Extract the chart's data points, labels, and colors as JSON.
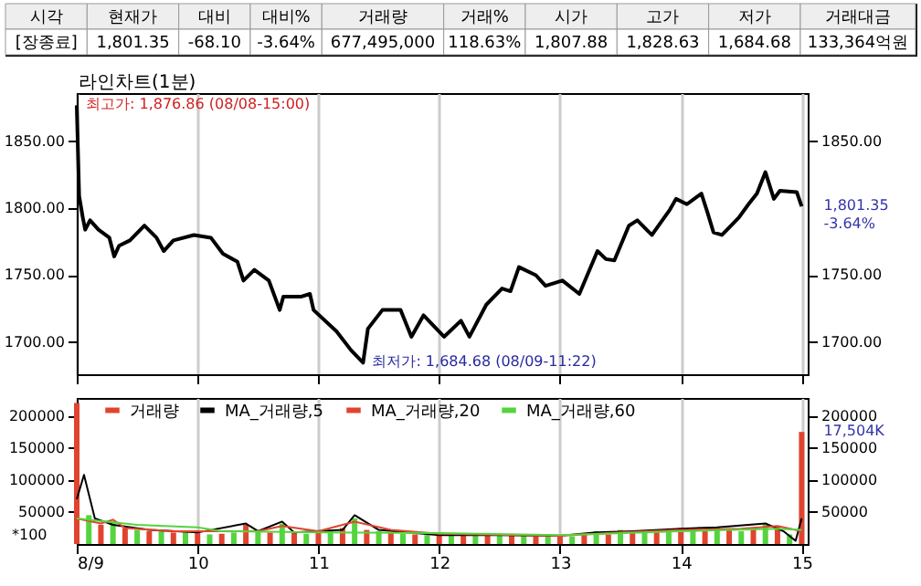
{
  "chart_data": [
    {
      "type": "other",
      "categories": [
        "시각",
        "현재가",
        "대비",
        "대비%",
        "거래량",
        "거래%",
        "시가",
        "고가",
        "저가",
        "거래대금"
      ],
      "value_labels": [
        "[장종료]",
        "1,801.35",
        "-68.10",
        "-3.64%",
        "677,495,000",
        "118.63%",
        "1,807.88",
        "1,828.63",
        "1,684.68",
        "133,364억원"
      ]
    },
    {
      "type": "line",
      "x": [
        9.0,
        9.02,
        9.05,
        9.07,
        9.11,
        9.18,
        9.27,
        9.31,
        9.35,
        9.44,
        9.56,
        9.66,
        9.72,
        9.8,
        9.97,
        10.11,
        10.21,
        10.33,
        10.38,
        10.47,
        10.59,
        10.68,
        10.71,
        10.86,
        10.93,
        10.96,
        11.15,
        11.27,
        11.37,
        11.41,
        11.53,
        11.68,
        11.77,
        11.87,
        12.04,
        12.18,
        12.25,
        12.39,
        12.52,
        12.59,
        12.66,
        12.8,
        12.88,
        13.02,
        13.16,
        13.31,
        13.38,
        13.45,
        13.57,
        13.64,
        13.76,
        13.91,
        13.96,
        14.05,
        14.17,
        14.22,
        14.27,
        14.34,
        14.48,
        14.56,
        14.63,
        14.7,
        14.77,
        14.82,
        14.96,
        15.0
      ],
      "series": [
        {
          "color": "#000000",
          "values": [
            1876.86,
            1809,
            1793,
            1784,
            1791,
            1784,
            1778,
            1764,
            1772,
            1776,
            1787,
            1778,
            1768,
            1776,
            1780,
            1778,
            1766,
            1760,
            1746,
            1754,
            1746,
            1724,
            1734,
            1734,
            1736,
            1724,
            1708,
            1694,
            1684.68,
            1710,
            1724,
            1724,
            1704,
            1720,
            1704,
            1716,
            1704,
            1728,
            1740,
            1738,
            1756,
            1750,
            1742,
            1746,
            1736,
            1768,
            1762,
            1761,
            1787,
            1791,
            1780,
            1799,
            1807,
            1803,
            1811,
            1797,
            1782,
            1780,
            1793,
            1803,
            1811,
            1827,
            1807,
            1813,
            1812,
            1801.35
          ]
        }
      ],
      "xlim": [
        9,
        15.05
      ],
      "xticks": [
        9,
        10,
        11,
        12,
        13,
        14,
        15
      ],
      "ylim": [
        1676,
        1886
      ],
      "yticks": [
        {
          "value": 1700,
          "label": "1700.00"
        },
        {
          "value": 1750,
          "label": "1750.00"
        },
        {
          "value": 1800,
          "label": "1800.00"
        },
        {
          "value": 1850,
          "label": "1850.00"
        }
      ],
      "y2lim": [
        1676,
        1886
      ],
      "y2ticks": [
        {
          "value": 1700,
          "label": "1700.00"
        },
        {
          "value": 1750,
          "label": "1750.00"
        },
        {
          "value": 1850,
          "label": "1850.00"
        }
      ],
      "grid": "x",
      "tick_labels": "y",
      "annotations": [
        "라인차트(1분)",
        {
          "text": "최고가: 1,876.86 (08/08-15:00)",
          "x": 9,
          "y": 1876.86
        },
        {
          "text": "최저가: 1,684.68 (08/09-11:22)",
          "x": 11.37,
          "y": 1684.68
        },
        {
          "text": "1,801.35",
          "x": 15,
          "y": 1801.35
        },
        {
          "text": "-3.64%",
          "x": 15,
          "y": 1801.35
        }
      ]
    },
    {
      "type": "bar",
      "series": [
        {
          "name": "거래량",
          "type": "bar",
          "color": "#e0442f",
          "x": [
            9.0,
            9.1,
            9.2,
            9.3,
            9.4,
            9.5,
            9.6,
            9.7,
            9.8,
            9.9,
            10.0,
            10.1,
            10.2,
            10.3,
            10.4,
            10.5,
            10.6,
            10.7,
            10.8,
            10.9,
            11.0,
            11.1,
            11.2,
            11.3,
            11.4,
            11.5,
            11.6,
            11.7,
            11.8,
            11.9,
            12.0,
            12.1,
            12.2,
            12.3,
            12.4,
            12.5,
            12.6,
            12.7,
            12.8,
            12.9,
            13.0,
            13.1,
            13.2,
            13.3,
            13.4,
            13.5,
            13.6,
            13.7,
            13.8,
            13.9,
            14.0,
            14.1,
            14.2,
            14.3,
            14.4,
            14.5,
            14.6,
            14.7,
            14.8,
            14.9,
            15.0
          ],
          "values": [
            220000,
            45000,
            30000,
            35000,
            25000,
            22000,
            20000,
            20000,
            18000,
            18000,
            17000,
            15000,
            16000,
            18000,
            30000,
            20000,
            18000,
            32000,
            18000,
            16000,
            18000,
            20000,
            25000,
            40000,
            22000,
            20000,
            18000,
            16000,
            15000,
            14000,
            14000,
            13000,
            14000,
            13000,
            15000,
            14000,
            16000,
            13000,
            12000,
            12000,
            13000,
            12000,
            14000,
            20000,
            15000,
            22000,
            20000,
            18000,
            22000,
            20000,
            25000,
            20000,
            22000,
            26000,
            22000,
            20000,
            24000,
            30000,
            28000,
            15000,
            175040
          ],
          "colors": [
            "#e0442f",
            "#55d43f",
            "#e0442f",
            "#55d43f",
            "#e0442f",
            "#55d43f",
            "#e0442f",
            "#55d43f",
            "#e0442f",
            "#55d43f",
            "#e0442f",
            "#55d43f",
            "#e0442f",
            "#55d43f",
            "#e0442f",
            "#55d43f",
            "#e0442f",
            "#55d43f",
            "#e0442f",
            "#55d43f",
            "#e0442f",
            "#55d43f",
            "#e0442f",
            "#55d43f",
            "#e0442f",
            "#55d43f",
            "#e0442f",
            "#55d43f",
            "#e0442f",
            "#55d43f",
            "#e0442f",
            "#55d43f",
            "#e0442f",
            "#55d43f",
            "#e0442f",
            "#55d43f",
            "#e0442f",
            "#55d43f",
            "#e0442f",
            "#55d43f",
            "#e0442f",
            "#55d43f",
            "#e0442f",
            "#55d43f",
            "#e0442f",
            "#55d43f",
            "#e0442f",
            "#55d43f",
            "#e0442f",
            "#55d43f",
            "#e0442f",
            "#55d43f",
            "#e0442f",
            "#55d43f",
            "#e0442f",
            "#55d43f",
            "#e0442f",
            "#55d43f",
            "#e0442f",
            "#55d43f",
            "#e0442f"
          ]
        },
        {
          "name": "MA_거래량,5",
          "type": "line",
          "color": "#000000",
          "x": [
            9.0,
            9.06,
            9.15,
            9.3,
            9.6,
            10.0,
            10.4,
            10.5,
            10.7,
            10.8,
            11.2,
            11.3,
            11.5,
            12.0,
            12.5,
            13.0,
            13.3,
            13.6,
            14.0,
            14.3,
            14.7,
            14.85,
            14.95,
            15.0
          ],
          "values": [
            70000,
            108000,
            40000,
            30000,
            22000,
            18000,
            32000,
            20000,
            35000,
            18000,
            22000,
            45000,
            22000,
            14000,
            14000,
            13000,
            18000,
            20000,
            24000,
            26000,
            32000,
            20000,
            5000,
            40000
          ]
        },
        {
          "name": "MA_거래량,20",
          "type": "line",
          "color": "#e0442f",
          "x": [
            9.0,
            9.2,
            9.3,
            9.4,
            9.8,
            10.5,
            10.7,
            11.0,
            11.3,
            11.6,
            12.0,
            13.0,
            13.5,
            14.0,
            14.5,
            14.8,
            15.0
          ],
          "values": [
            40000,
            32000,
            38000,
            25000,
            20000,
            20000,
            28000,
            20000,
            35000,
            22000,
            16000,
            13000,
            18000,
            22000,
            24000,
            28000,
            20000
          ]
        },
        {
          "name": "MA_거래량,60",
          "type": "line",
          "color": "#55d43f",
          "x": [
            9.0,
            9.5,
            10.0,
            10.2,
            11.0,
            12.0,
            13.0,
            14.0,
            14.8,
            15.0
          ],
          "values": [
            40000,
            30000,
            26000,
            20000,
            18000,
            17000,
            14000,
            20000,
            24000,
            22000
          ]
        }
      ],
      "xlim": [
        9,
        15.05
      ],
      "xticks": [
        {
          "value": 9,
          "label": "8/9"
        },
        10,
        11,
        12,
        13,
        14,
        15
      ],
      "ylim": [
        0,
        228000
      ],
      "yticks": [
        50000,
        100000,
        150000,
        200000
      ],
      "y2lim": [
        0,
        228000
      ],
      "y2ticks": [
        50000,
        100000,
        150000,
        200000
      ],
      "ylabel": "*100",
      "grid": "x",
      "legend": "top left",
      "annotations": [
        {
          "text": "17,504K",
          "x": 15,
          "y": 175040
        }
      ]
    }
  ]
}
